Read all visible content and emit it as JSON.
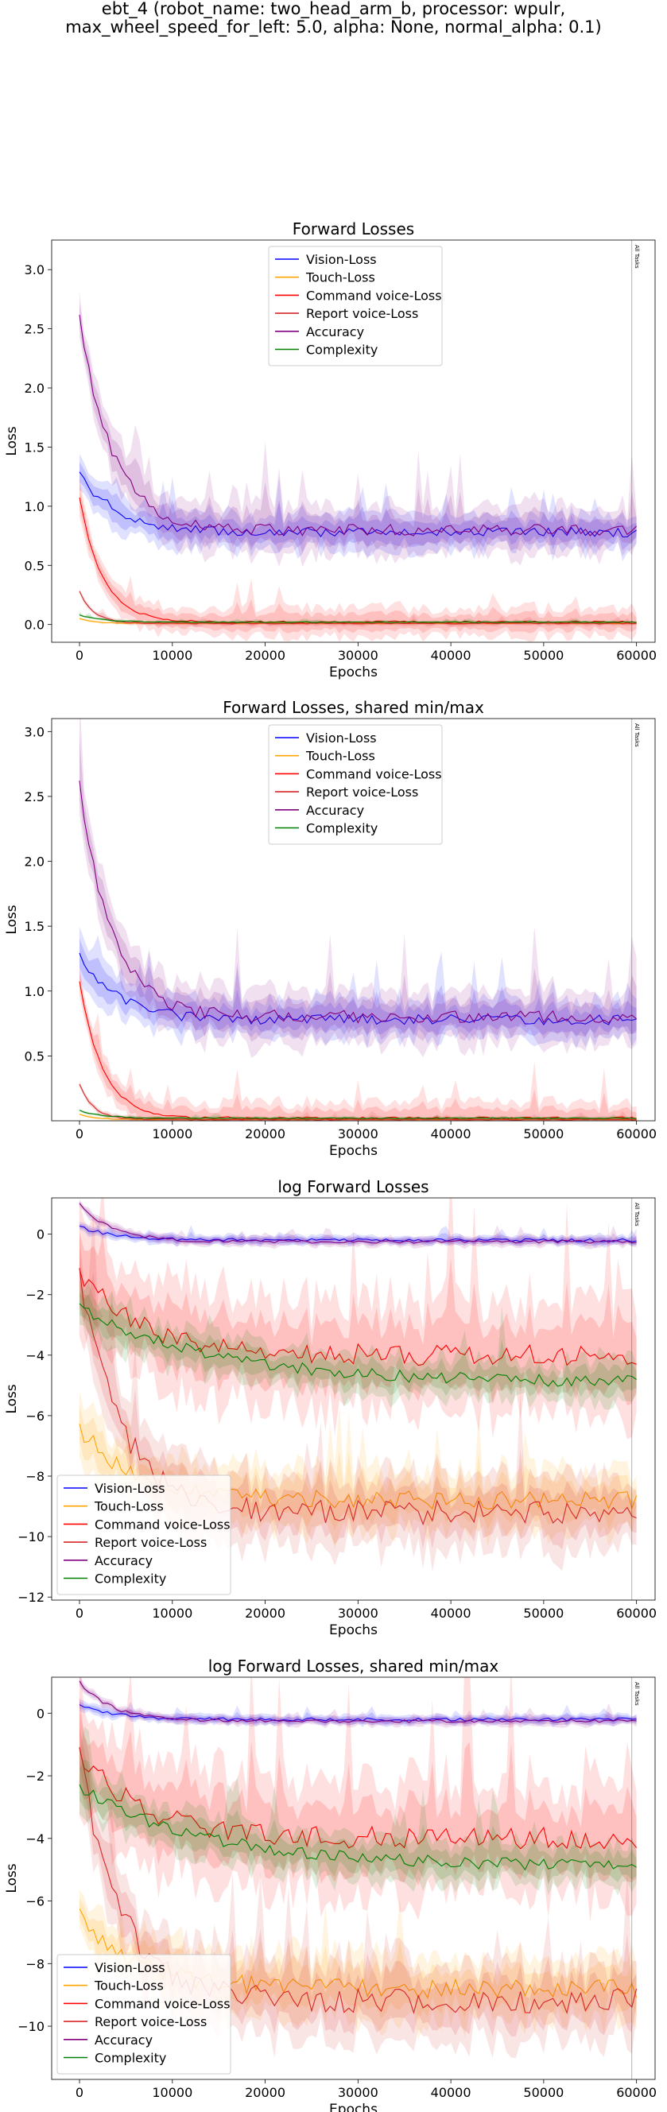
{
  "suptitle": {
    "line1": "ebt_4 (robot_name: two_head_arm_b, processor: wpulr,",
    "line2": "max_wheel_speed_for_left: 5.0, alpha: None, normal_alpha: 0.1)"
  },
  "colors": {
    "vision": "#0000ff",
    "touch": "#ffa500",
    "command": "#ff0000",
    "report": "#d62728",
    "accuracy": "#800080",
    "complexity": "#008000"
  },
  "chart_data": [
    {
      "type": "line",
      "title": "Forward Losses",
      "xlabel": "Epochs",
      "ylabel": "Loss",
      "xlim": [
        -3000,
        62000
      ],
      "ylim": [
        -0.15,
        3.25
      ],
      "xticks": [
        0,
        10000,
        20000,
        30000,
        40000,
        50000,
        60000
      ],
      "yticks": [
        0.0,
        0.5,
        1.0,
        1.5,
        2.0,
        2.5,
        3.0
      ],
      "ytick_labels": [
        "0.0",
        "0.5",
        "1.0",
        "1.5",
        "2.0",
        "2.5",
        "3.0"
      ],
      "log": false,
      "vline": {
        "x": 59500,
        "label": "All Tasks"
      },
      "legend": "upper-center",
      "grid": false,
      "series": [
        {
          "name": "Vision-Loss",
          "start": 1.28,
          "end": 0.78,
          "k": 4000,
          "noise": 0.04,
          "band": 0.15
        },
        {
          "name": "Touch-Loss",
          "start": 0.05,
          "end": 0.01,
          "k": 1500,
          "noise": 0.002,
          "band": 0.01
        },
        {
          "name": "Command voice-Loss",
          "start": 1.07,
          "end": 0.02,
          "k": 2500,
          "noise": 0.01,
          "band": 0.12
        },
        {
          "name": "Report voice-Loss",
          "start": 0.28,
          "end": 0.01,
          "k": 1500,
          "noise": 0.005,
          "band": 0.02
        },
        {
          "name": "Accuracy",
          "start": 2.6,
          "end": 0.8,
          "k": 3500,
          "noise": 0.05,
          "band": 0.2
        },
        {
          "name": "Complexity",
          "start": 0.08,
          "end": 0.02,
          "k": 2500,
          "noise": 0.003,
          "band": 0.01
        }
      ]
    },
    {
      "type": "line",
      "title": "Forward Losses, shared min/max",
      "xlabel": "Epochs",
      "ylabel": "Loss",
      "xlim": [
        -3000,
        62000
      ],
      "ylim": [
        0.0,
        3.1
      ],
      "xticks": [
        0,
        10000,
        20000,
        30000,
        40000,
        50000,
        60000
      ],
      "yticks": [
        0.5,
        1.0,
        1.5,
        2.0,
        2.5,
        3.0
      ],
      "ytick_labels": [
        "0.5",
        "1.0",
        "1.5",
        "2.0",
        "2.5",
        "3.0"
      ],
      "log": false,
      "vline": {
        "x": 59500,
        "label": "All Tasks"
      },
      "legend": "upper-center",
      "grid": false,
      "series": [
        {
          "name": "Vision-Loss",
          "start": 1.28,
          "end": 0.78,
          "k": 4000,
          "noise": 0.04,
          "band": 0.15
        },
        {
          "name": "Touch-Loss",
          "start": 0.05,
          "end": 0.01,
          "k": 1500,
          "noise": 0.002,
          "band": 0.01
        },
        {
          "name": "Command voice-Loss",
          "start": 1.07,
          "end": 0.02,
          "k": 2500,
          "noise": 0.01,
          "band": 0.12
        },
        {
          "name": "Report voice-Loss",
          "start": 0.28,
          "end": 0.01,
          "k": 1500,
          "noise": 0.005,
          "band": 0.02
        },
        {
          "name": "Accuracy",
          "start": 2.6,
          "end": 0.8,
          "k": 3500,
          "noise": 0.05,
          "band": 0.2
        },
        {
          "name": "Complexity",
          "start": 0.08,
          "end": 0.02,
          "k": 2500,
          "noise": 0.003,
          "band": 0.01
        }
      ]
    },
    {
      "type": "line",
      "title": "log Forward Losses",
      "xlabel": "Epochs",
      "ylabel": "Loss",
      "xlim": [
        -3000,
        62000
      ],
      "ylim": [
        -12.1,
        1.2
      ],
      "xticks": [
        0,
        10000,
        20000,
        30000,
        40000,
        50000,
        60000
      ],
      "yticks": [
        0,
        -2,
        -4,
        -6,
        -8,
        -10,
        -12
      ],
      "ytick_labels": [
        "0",
        "−2",
        "−4",
        "−6",
        "−8",
        "−10",
        "−12"
      ],
      "log": true,
      "vline": {
        "x": 59500,
        "label": "All Tasks"
      },
      "legend": "lower-left",
      "grid": false,
      "series": [
        {
          "name": "Vision-Loss",
          "start": 0.25,
          "end": -0.2,
          "k": 4000,
          "noise": 0.05,
          "band": 0.15
        },
        {
          "name": "Touch-Loss",
          "start": -6.4,
          "end": -8.8,
          "k": 6000,
          "noise": 0.3,
          "band": 1.0
        },
        {
          "name": "Command voice-Loss",
          "start": -1.3,
          "end": -4.0,
          "k": 7000,
          "noise": 0.35,
          "band": 1.8
        },
        {
          "name": "Report voice-Loss",
          "start": -1.3,
          "end": -9.2,
          "k": 4500,
          "noise": 0.4,
          "band": 1.2
        },
        {
          "name": "Accuracy",
          "start": 1.0,
          "end": -0.25,
          "k": 3500,
          "noise": 0.05,
          "band": 0.15
        },
        {
          "name": "Complexity",
          "start": -2.4,
          "end": -4.9,
          "k": 14000,
          "noise": 0.2,
          "band": 0.7
        }
      ]
    },
    {
      "type": "line",
      "title": "log Forward Losses, shared min/max",
      "xlabel": "Epochs",
      "ylabel": "Loss",
      "xlim": [
        -3000,
        62000
      ],
      "ylim": [
        -11.7,
        1.15
      ],
      "xticks": [
        0,
        10000,
        20000,
        30000,
        40000,
        50000,
        60000
      ],
      "yticks": [
        0,
        -2,
        -4,
        -6,
        -8,
        -10
      ],
      "ytick_labels": [
        "0",
        "−2",
        "−4",
        "−6",
        "−8",
        "−10"
      ],
      "log": true,
      "vline": {
        "x": 59500,
        "label": "All Tasks"
      },
      "legend": "lower-left",
      "grid": false,
      "series": [
        {
          "name": "Vision-Loss",
          "start": 0.25,
          "end": -0.2,
          "k": 4000,
          "noise": 0.05,
          "band": 0.15
        },
        {
          "name": "Touch-Loss",
          "start": -6.4,
          "end": -8.8,
          "k": 6000,
          "noise": 0.3,
          "band": 1.0
        },
        {
          "name": "Command voice-Loss",
          "start": -1.3,
          "end": -4.0,
          "k": 7000,
          "noise": 0.35,
          "band": 1.8
        },
        {
          "name": "Report voice-Loss",
          "start": -1.3,
          "end": -9.2,
          "k": 4500,
          "noise": 0.4,
          "band": 1.2
        },
        {
          "name": "Accuracy",
          "start": 1.0,
          "end": -0.25,
          "k": 3500,
          "noise": 0.05,
          "band": 0.15
        },
        {
          "name": "Complexity",
          "start": -2.4,
          "end": -4.9,
          "k": 14000,
          "noise": 0.2,
          "band": 0.7
        }
      ]
    }
  ]
}
